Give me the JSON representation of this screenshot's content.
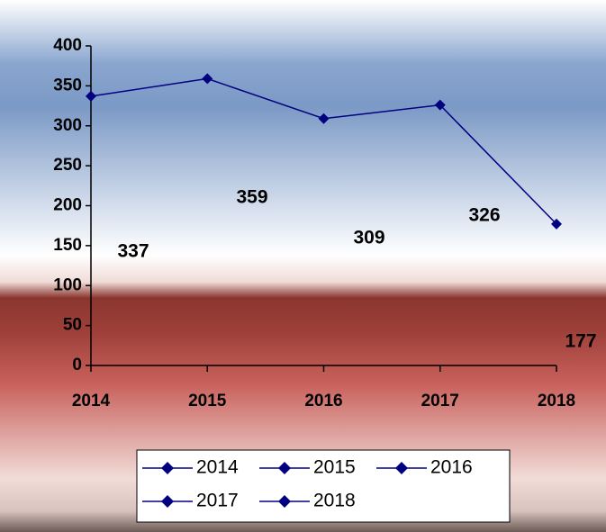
{
  "chart_data": {
    "type": "line",
    "categories": [
      "2014",
      "2015",
      "2016",
      "2017",
      "2018"
    ],
    "series": [
      {
        "values": [
          337,
          359,
          309,
          326,
          177
        ],
        "color": "#000080"
      }
    ],
    "ylim": [
      0,
      400
    ],
    "yticks": [
      0,
      50,
      100,
      150,
      200,
      250,
      300,
      350,
      400
    ]
  }
}
